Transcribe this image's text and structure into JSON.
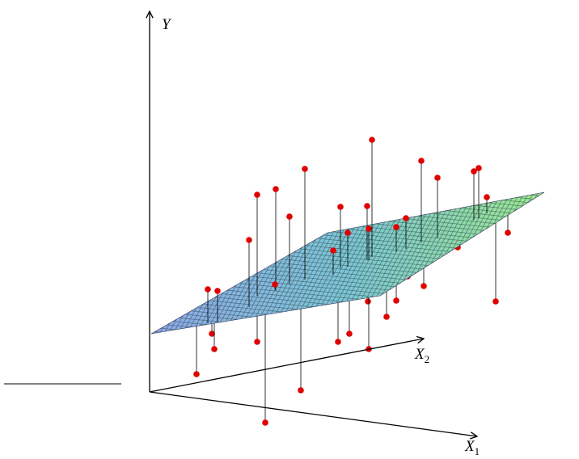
{
  "axes": {
    "y": {
      "label": "Y"
    },
    "x1": {
      "label": "X",
      "subscript": "1"
    },
    "x2": {
      "label": "X",
      "subscript": "2"
    }
  }
}
